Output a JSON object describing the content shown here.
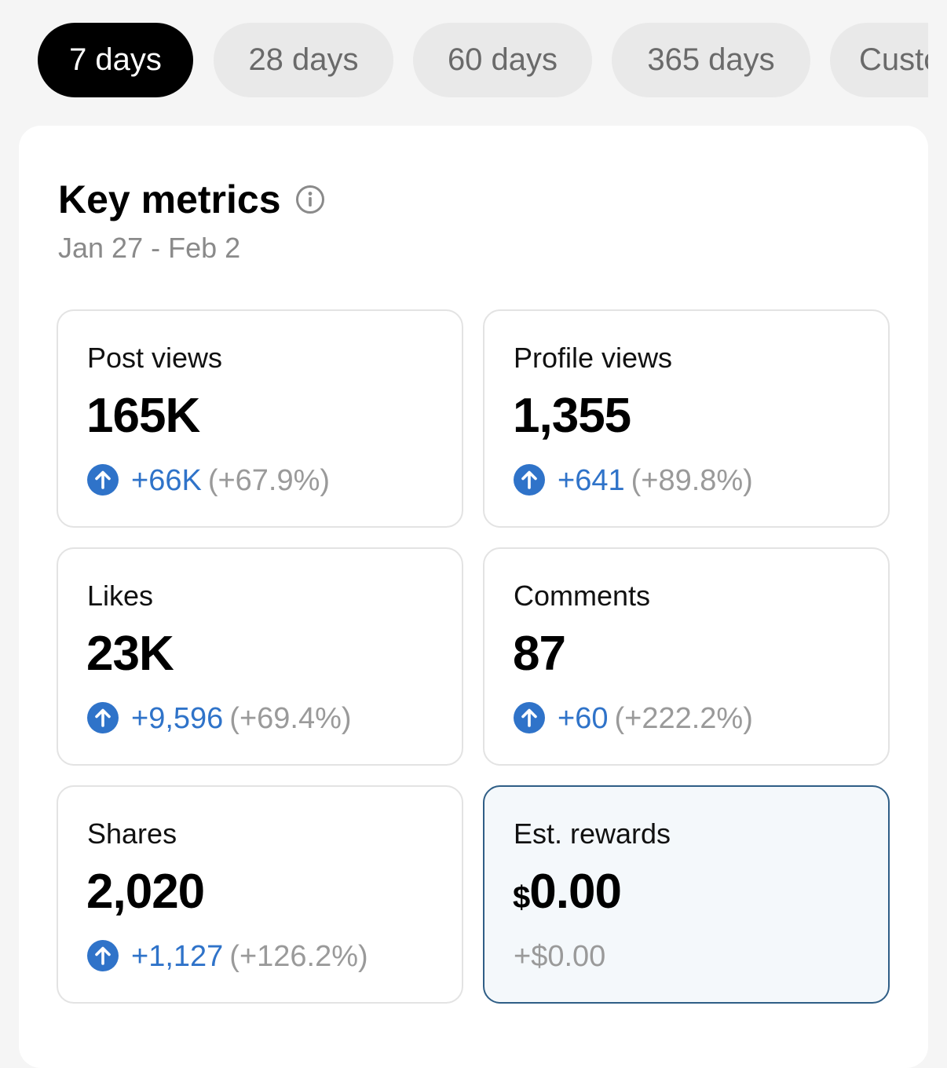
{
  "tabs": [
    {
      "label": "7 days",
      "active": true
    },
    {
      "label": "28 days",
      "active": false
    },
    {
      "label": "60 days",
      "active": false
    },
    {
      "label": "365 days",
      "active": false
    },
    {
      "label": "Custom",
      "active": false
    }
  ],
  "key_metrics": {
    "title": "Key metrics",
    "date_range": "Jan 27 - Feb 2"
  },
  "metrics": [
    {
      "label": "Post views",
      "value": "165K",
      "delta": "+66K",
      "pct": "(+67.9%)"
    },
    {
      "label": "Profile views",
      "value": "1,355",
      "delta": "+641",
      "pct": "(+89.8%)"
    },
    {
      "label": "Likes",
      "value": "23K",
      "delta": "+9,596",
      "pct": "(+69.4%)"
    },
    {
      "label": "Comments",
      "value": "87",
      "delta": "+60",
      "pct": "(+222.2%)"
    },
    {
      "label": "Shares",
      "value": "2,020",
      "delta": "+1,127",
      "pct": "(+126.2%)"
    },
    {
      "label": "Est. rewards",
      "currency": "$",
      "value": "0.00",
      "change": "+$0.00"
    }
  ],
  "colors": {
    "accent_blue": "#2f73c9",
    "highlight_border": "#2f5e86",
    "active_tab": "#000000"
  },
  "icons": {
    "info": "info-circle-icon",
    "trend": "arrow-up-circle-icon"
  }
}
